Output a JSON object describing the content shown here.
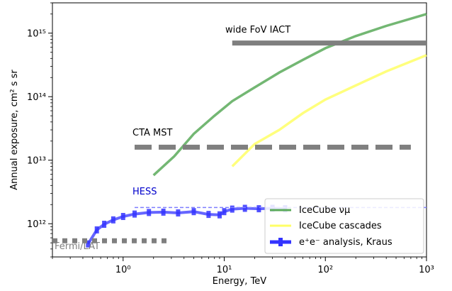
{
  "chart_data": {
    "type": "line",
    "xlabel": "Energy, TeV",
    "ylabel": "Annual exposure, cm² s sr",
    "xscale": "log",
    "yscale": "log",
    "xlim": [
      0.2,
      1000
    ],
    "ylim": [
      300000000000.0,
      3000000000000000.0
    ],
    "x_ticks": [
      {
        "value": 1,
        "label": "10⁰"
      },
      {
        "value": 10,
        "label": "10¹"
      },
      {
        "value": 100,
        "label": "10²"
      },
      {
        "value": 1000,
        "label": "10³"
      }
    ],
    "y_ticks": [
      {
        "value": 1000000000000.0,
        "label": "10¹²"
      },
      {
        "value": 10000000000000.0,
        "label": "10¹³"
      },
      {
        "value": 100000000000000.0,
        "label": "10¹⁴"
      },
      {
        "value": 1000000000000000.0,
        "label": "10¹⁵"
      }
    ],
    "grid": false,
    "legend_position": "lower-right",
    "series": [
      {
        "name": "IceCube νμ",
        "color": "#5aaa5a",
        "style": "solid",
        "x": [
          2,
          3.2,
          5,
          8,
          12,
          20,
          35,
          60,
          100,
          200,
          400,
          1000
        ],
        "y": [
          5800000000000.0,
          11500000000000.0,
          26000000000000.0,
          50000000000000.0,
          85000000000000.0,
          140000000000000.0,
          240000000000000.0,
          380000000000000.0,
          580000000000000.0,
          900000000000000.0,
          1300000000000000.0,
          2000000000000000.0
        ]
      },
      {
        "name": "IceCube cascades",
        "color": "#ffff66",
        "style": "solid",
        "x": [
          12,
          20,
          35,
          60,
          100,
          200,
          400,
          1000
        ],
        "y": [
          8000000000000.0,
          18000000000000.0,
          30000000000000.0,
          55000000000000.0,
          90000000000000.0,
          150000000000000.0,
          250000000000000.0,
          450000000000000.0
        ]
      },
      {
        "name": "e⁺e⁻ analysis, Kraus",
        "color": "#3333ff",
        "style": "errorbar",
        "x": [
          0.45,
          0.55,
          0.65,
          0.8,
          1.0,
          1.3,
          1.8,
          2.5,
          3.5,
          5,
          7,
          9,
          10,
          12,
          16,
          22,
          30,
          40
        ],
        "y": [
          480000000000.0,
          800000000000.0,
          980000000000.0,
          1150000000000.0,
          1300000000000.0,
          1420000000000.0,
          1500000000000.0,
          1520000000000.0,
          1480000000000.0,
          1550000000000.0,
          1400000000000.0,
          1380000000000.0,
          1550000000000.0,
          1700000000000.0,
          1750000000000.0,
          1720000000000.0,
          1750000000000.0,
          1720000000000.0
        ]
      },
      {
        "name": "wide FoV IACT",
        "color": "#7f7f7f",
        "style": "thick-solid",
        "x": [
          12,
          1000
        ],
        "y": [
          700000000000000.0,
          700000000000000.0
        ]
      },
      {
        "name": "CTA MST",
        "color": "#7f7f7f",
        "style": "dashed",
        "x": [
          1.3,
          700
        ],
        "y": [
          16000000000000.0,
          16000000000000.0
        ]
      },
      {
        "name": "HESS",
        "color": "#7f7fff",
        "style": "thin-dashed",
        "x": [
          1.3,
          1000
        ],
        "y": [
          1800000000000.0,
          1800000000000.0
        ]
      },
      {
        "name": "Fermi/LAT",
        "color": "#7f7f7f",
        "style": "dotted",
        "x": [
          0.2,
          3
        ],
        "y": [
          540000000000.0,
          540000000000.0
        ]
      }
    ],
    "annotations": [
      {
        "text": "wide FoV IACT",
        "color": "#000000"
      },
      {
        "text": "CTA MST",
        "color": "#000000"
      },
      {
        "text": "HESS",
        "color": "#0000cc"
      },
      {
        "text": "Fermi/LAT",
        "color": "#7f7f7f"
      }
    ],
    "legend": [
      {
        "label": "IceCube νμ",
        "color": "#5aaa5a"
      },
      {
        "label": "IceCube cascades",
        "color": "#ffff66"
      },
      {
        "label": "e⁺e⁻ analysis, Kraus",
        "color": "#3333ff"
      }
    ]
  }
}
